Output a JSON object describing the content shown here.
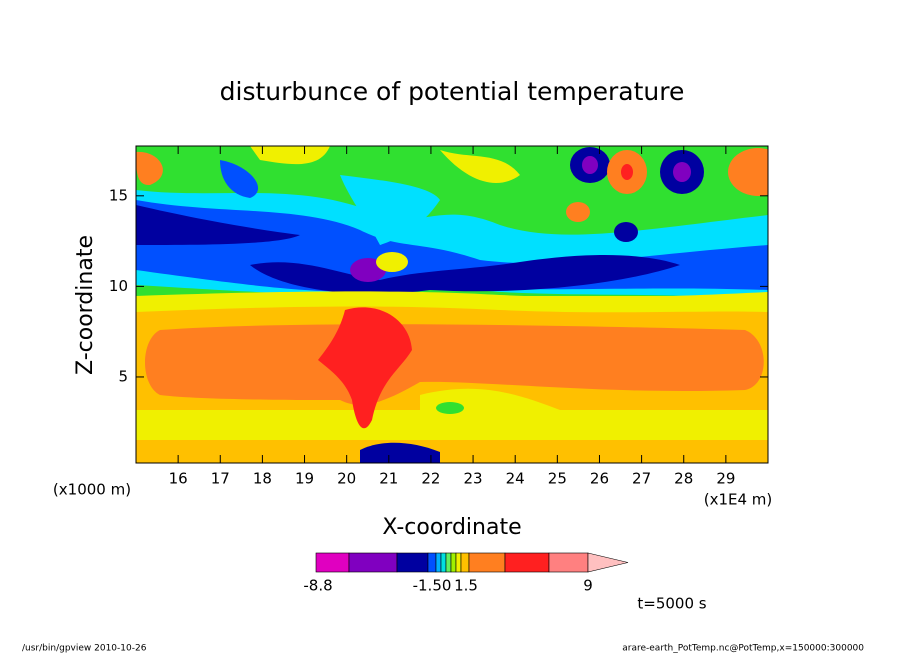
{
  "chart_data": {
    "type": "contour",
    "title": "disturbunce of potential temperature",
    "xlabel": "X-coordinate",
    "ylabel": "Z-coordinate",
    "xunit": "(x1E4 m)",
    "yunit": "(x1000 m)",
    "xlim": [
      15,
      30
    ],
    "ylim": [
      0.25,
      17.75
    ],
    "xticks": [
      16,
      17,
      18,
      19,
      20,
      21,
      22,
      23,
      24,
      25,
      26,
      27,
      28,
      29
    ],
    "yticks": [
      5,
      10,
      15
    ],
    "colorbar": {
      "colors": [
        "#e000c0",
        "#8000c0",
        "#0000a0",
        "#0050ff",
        "#00b0ff",
        "#00e0e0",
        "#60f060",
        "#a0f000",
        "#f0f000",
        "#ffc000",
        "#ff7f20",
        "#ff2020",
        "#ff8080",
        "#ffc0c0"
      ],
      "ticks": [
        -8.8,
        {
          "value": -1.5,
          "label": "-1.50"
        },
        1.5,
        9
      ]
    },
    "annotation": "t=5000 s",
    "footer_left": "/usr/bin/gpview  2010-10-26",
    "footer_right": "arare-earth_PotTemp.nc@PotTemp,x=150000:300000"
  }
}
